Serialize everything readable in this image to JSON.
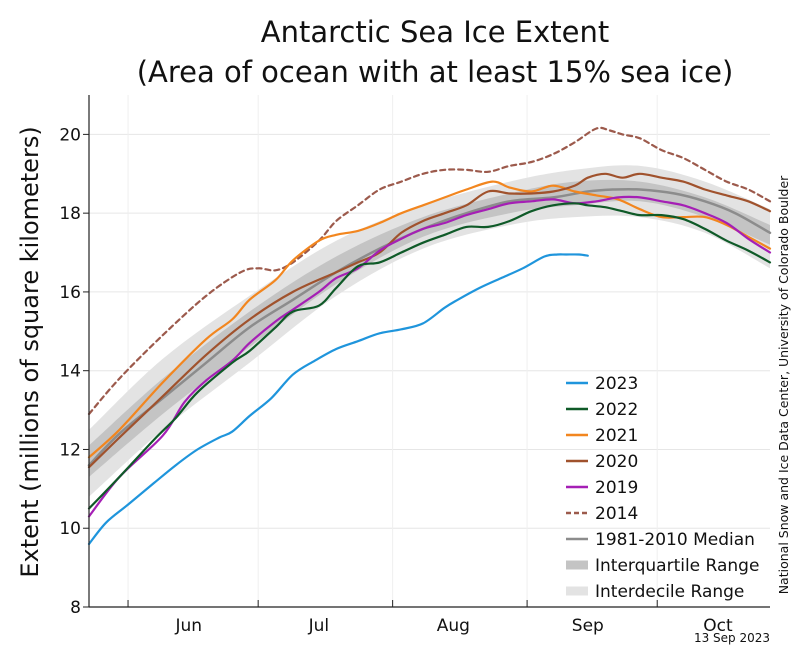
{
  "chart_data": {
    "type": "line",
    "title_line1": "Antarctic Sea Ice Extent",
    "title_line2": "(Area of ocean with at least 15% sea ice)",
    "ylabel": "Extent (millions of square kilometers)",
    "xlabel": "",
    "ylim": [
      8,
      21
    ],
    "yticks": [
      8,
      10,
      12,
      14,
      16,
      18,
      20
    ],
    "x_unit": "day of year",
    "xlim": [
      143,
      300
    ],
    "month_ticks": [
      {
        "label": "Jun",
        "day": 166
      },
      {
        "label": "Jul",
        "day": 196
      },
      {
        "label": "Aug",
        "day": 227
      },
      {
        "label": "Sep",
        "day": 258
      },
      {
        "label": "Oct",
        "day": 288
      }
    ],
    "month_boundaries": [
      152,
      182,
      213,
      244,
      274
    ],
    "credit": "National Snow and Ice Data Center, University of Colorado Boulder",
    "date": "13 Sep 2023",
    "legend": [
      {
        "label": "2023",
        "kind": "line",
        "color": "#1f95dc"
      },
      {
        "label": "2022",
        "kind": "line",
        "color": "#0f5a28"
      },
      {
        "label": "2021",
        "kind": "line",
        "color": "#f2861f"
      },
      {
        "label": "2020",
        "kind": "line",
        "color": "#a0522d"
      },
      {
        "label": "2019",
        "kind": "line",
        "color": "#a51fb5"
      },
      {
        "label": "2014",
        "kind": "dashed",
        "color": "#9c5a4c"
      },
      {
        "label": "1981-2010 Median",
        "kind": "line",
        "color": "#8c8c8c"
      },
      {
        "label": "Interquartile Range",
        "kind": "band",
        "color": "#c4c4c4"
      },
      {
        "label": "Interdecile Range",
        "kind": "band",
        "color": "#e3e3e3"
      }
    ],
    "ranges": {
      "interdecile": {
        "x": [
          143,
          160,
          180,
          200,
          220,
          240,
          255,
          270,
          285,
          300
        ],
        "low": [
          10.8,
          12.5,
          14.2,
          15.9,
          17.1,
          17.7,
          17.9,
          17.9,
          17.5,
          16.6
        ],
        "high": [
          12.5,
          14.3,
          15.9,
          17.3,
          18.2,
          18.8,
          19.1,
          19.2,
          18.8,
          18.1
        ]
      },
      "interquartile": {
        "x": [
          143,
          160,
          180,
          200,
          220,
          240,
          255,
          270,
          285,
          300
        ],
        "low": [
          11.3,
          12.9,
          14.6,
          16.2,
          17.4,
          18.0,
          18.2,
          18.3,
          17.9,
          17.2
        ],
        "high": [
          12.1,
          13.8,
          15.5,
          16.9,
          17.9,
          18.5,
          18.8,
          18.8,
          18.4,
          17.7
        ]
      }
    },
    "series": [
      {
        "name": "1981-2010 Median",
        "color": "#8c8c8c",
        "width": 2.5,
        "dash": "",
        "x": [
          143,
          150,
          160,
          170,
          180,
          190,
          200,
          210,
          220,
          230,
          240,
          250,
          258,
          264,
          270,
          278,
          285,
          292,
          300
        ],
        "y": [
          11.6,
          12.4,
          13.3,
          14.2,
          15.1,
          15.8,
          16.5,
          17.1,
          17.6,
          18.0,
          18.3,
          18.4,
          18.55,
          18.6,
          18.6,
          18.5,
          18.3,
          18.0,
          17.5
        ]
      },
      {
        "name": "2014",
        "color": "#9c5a4c",
        "width": 2.2,
        "dash": "5,4",
        "x": [
          143,
          150,
          160,
          170,
          178,
          182,
          186,
          190,
          196,
          200,
          205,
          210,
          215,
          220,
          225,
          230,
          235,
          240,
          245,
          250,
          255,
          260,
          263,
          266,
          270,
          275,
          280,
          285,
          290,
          295,
          300
        ],
        "y": [
          12.9,
          13.8,
          14.9,
          15.9,
          16.5,
          16.6,
          16.55,
          16.75,
          17.3,
          17.8,
          18.2,
          18.6,
          18.8,
          19.0,
          19.1,
          19.1,
          19.05,
          19.2,
          19.3,
          19.5,
          19.8,
          20.15,
          20.1,
          20.0,
          19.9,
          19.6,
          19.4,
          19.1,
          18.8,
          18.6,
          18.3
        ]
      },
      {
        "name": "2021",
        "color": "#f2861f",
        "width": 2.2,
        "dash": "",
        "x": [
          143,
          150,
          160,
          170,
          176,
          180,
          186,
          190,
          196,
          200,
          205,
          210,
          215,
          220,
          225,
          230,
          236,
          240,
          245,
          250,
          255,
          260,
          265,
          270,
          275,
          280,
          285,
          290,
          295,
          300
        ],
        "y": [
          11.8,
          12.5,
          13.7,
          14.8,
          15.3,
          15.8,
          16.3,
          16.8,
          17.3,
          17.45,
          17.55,
          17.75,
          18.0,
          18.2,
          18.4,
          18.6,
          18.8,
          18.65,
          18.55,
          18.7,
          18.55,
          18.45,
          18.35,
          18.1,
          17.9,
          17.9,
          17.9,
          17.7,
          17.4,
          17.1
        ]
      },
      {
        "name": "2020",
        "color": "#a0522d",
        "width": 2.2,
        "dash": "",
        "x": [
          143,
          150,
          160,
          170,
          180,
          190,
          200,
          205,
          210,
          215,
          220,
          225,
          230,
          235,
          240,
          245,
          250,
          255,
          258,
          262,
          266,
          270,
          275,
          280,
          285,
          290,
          295,
          300
        ],
        "y": [
          11.55,
          12.3,
          13.35,
          14.4,
          15.3,
          16.0,
          16.5,
          16.75,
          17.0,
          17.5,
          17.8,
          18.0,
          18.2,
          18.55,
          18.5,
          18.5,
          18.55,
          18.7,
          18.9,
          19.0,
          18.9,
          19.0,
          18.9,
          18.8,
          18.6,
          18.45,
          18.3,
          18.05
        ]
      },
      {
        "name": "2019",
        "color": "#a51fb5",
        "width": 2.2,
        "dash": "",
        "x": [
          143,
          150,
          160,
          165,
          170,
          176,
          180,
          186,
          190,
          196,
          200,
          205,
          210,
          215,
          220,
          225,
          230,
          235,
          240,
          245,
          250,
          255,
          260,
          265,
          270,
          275,
          280,
          285,
          290,
          295,
          300
        ],
        "y": [
          10.3,
          11.3,
          12.35,
          13.2,
          13.75,
          14.25,
          14.7,
          15.25,
          15.55,
          16.0,
          16.35,
          16.6,
          17.05,
          17.35,
          17.6,
          17.75,
          17.95,
          18.1,
          18.25,
          18.3,
          18.35,
          18.25,
          18.3,
          18.4,
          18.4,
          18.3,
          18.2,
          18.0,
          17.75,
          17.35,
          17.0
        ]
      },
      {
        "name": "2022",
        "color": "#0f5a28",
        "width": 2.2,
        "dash": "",
        "x": [
          143,
          150,
          158,
          163,
          168,
          176,
          180,
          186,
          190,
          196,
          200,
          205,
          210,
          215,
          220,
          225,
          230,
          235,
          240,
          245,
          250,
          255,
          258,
          262,
          266,
          270,
          275,
          280,
          285,
          290,
          295,
          300
        ],
        "y": [
          10.5,
          11.3,
          12.25,
          12.8,
          13.45,
          14.2,
          14.5,
          15.1,
          15.5,
          15.65,
          16.1,
          16.65,
          16.75,
          17.0,
          17.25,
          17.45,
          17.65,
          17.65,
          17.8,
          18.05,
          18.2,
          18.25,
          18.2,
          18.15,
          18.05,
          17.95,
          17.95,
          17.85,
          17.6,
          17.3,
          17.05,
          16.75
        ]
      },
      {
        "name": "2023",
        "color": "#1f95dc",
        "width": 2.2,
        "dash": "",
        "x": [
          143,
          147,
          152,
          158,
          163,
          168,
          173,
          176,
          180,
          185,
          190,
          195,
          200,
          205,
          210,
          215,
          220,
          225,
          228,
          233,
          238,
          243,
          248,
          251,
          253,
          256,
          258
        ],
        "y": [
          9.6,
          10.15,
          10.6,
          11.15,
          11.6,
          12.0,
          12.3,
          12.45,
          12.85,
          13.3,
          13.9,
          14.25,
          14.55,
          14.75,
          14.95,
          15.05,
          15.2,
          15.6,
          15.8,
          16.1,
          16.35,
          16.6,
          16.9,
          16.95,
          16.95,
          16.95,
          16.92
        ]
      }
    ]
  }
}
